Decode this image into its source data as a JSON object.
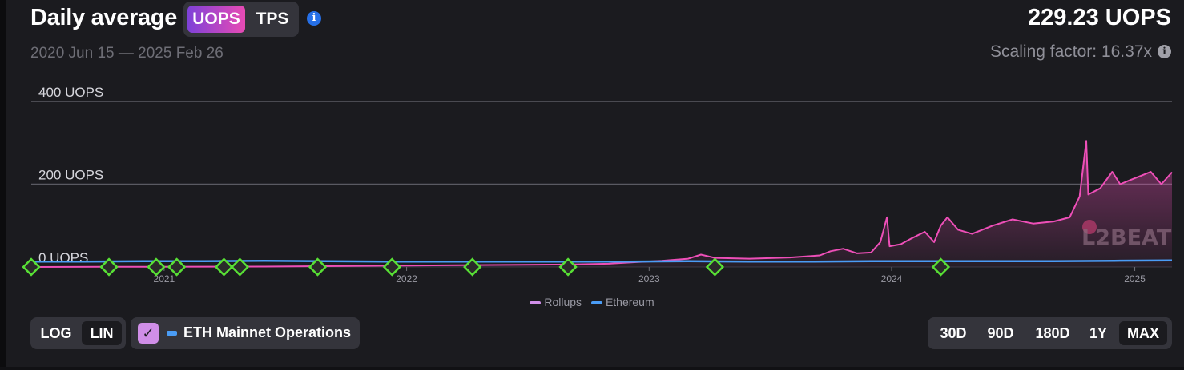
{
  "header": {
    "title": "Daily average",
    "metric_options": [
      "UOPS",
      "TPS"
    ],
    "metric_selected": "UOPS",
    "date_range": "2020 Jun 15 — 2025 Feb 26",
    "headline_value": "229.23 UOPS",
    "scaling_factor": "Scaling factor: 16.37x",
    "info_icon": "info-icon"
  },
  "chart_data": {
    "type": "line",
    "title": "Daily average",
    "ylabel": "",
    "xlabel": "",
    "ylim": [
      0,
      400
    ],
    "y_ticks": [
      "0 UOPS",
      "200 UOPS",
      "400 UOPS"
    ],
    "x_ticks": [
      "2021",
      "2022",
      "2023",
      "2024",
      "2025"
    ],
    "x_range": [
      "2020-06-15",
      "2025-02-26"
    ],
    "grid": true,
    "legend_position": "bottom-center",
    "watermark": "L2BEAT",
    "series": [
      {
        "name": "Rollups",
        "color": "#ee4fb8",
        "fill": true,
        "points": [
          [
            "2020-06-15",
            0
          ],
          [
            "2020-12-01",
            0.5
          ],
          [
            "2021-06-01",
            1
          ],
          [
            "2021-09-01",
            2
          ],
          [
            "2021-12-01",
            3
          ],
          [
            "2022-03-01",
            4
          ],
          [
            "2022-06-01",
            5
          ],
          [
            "2022-09-01",
            6
          ],
          [
            "2022-11-01",
            8
          ],
          [
            "2022-12-15",
            12
          ],
          [
            "2023-01-20",
            15
          ],
          [
            "2023-03-01",
            20
          ],
          [
            "2023-03-20",
            30
          ],
          [
            "2023-04-10",
            22
          ],
          [
            "2023-06-01",
            20
          ],
          [
            "2023-08-01",
            23
          ],
          [
            "2023-09-15",
            28
          ],
          [
            "2023-10-01",
            38
          ],
          [
            "2023-10-20",
            44
          ],
          [
            "2023-11-10",
            33
          ],
          [
            "2023-12-01",
            35
          ],
          [
            "2023-12-15",
            60
          ],
          [
            "2023-12-25",
            120
          ],
          [
            "2023-12-29",
            50
          ],
          [
            "2024-01-15",
            55
          ],
          [
            "2024-02-01",
            70
          ],
          [
            "2024-02-20",
            85
          ],
          [
            "2024-03-05",
            60
          ],
          [
            "2024-03-15",
            100
          ],
          [
            "2024-03-25",
            120
          ],
          [
            "2024-04-10",
            90
          ],
          [
            "2024-05-01",
            80
          ],
          [
            "2024-06-01",
            100
          ],
          [
            "2024-07-01",
            115
          ],
          [
            "2024-08-01",
            105
          ],
          [
            "2024-09-01",
            110
          ],
          [
            "2024-09-25",
            120
          ],
          [
            "2024-10-10",
            170
          ],
          [
            "2024-10-20",
            305
          ],
          [
            "2024-10-23",
            175
          ],
          [
            "2024-11-10",
            190
          ],
          [
            "2024-11-28",
            230
          ],
          [
            "2024-12-10",
            200
          ],
          [
            "2024-12-25",
            210
          ],
          [
            "2025-01-10",
            220
          ],
          [
            "2025-01-25",
            230
          ],
          [
            "2025-02-10",
            200
          ],
          [
            "2025-02-26",
            229
          ]
        ]
      },
      {
        "name": "Ethereum",
        "color": "#4a9cf5",
        "fill": false,
        "points": [
          [
            "2020-06-15",
            13
          ],
          [
            "2020-09-01",
            13
          ],
          [
            "2020-12-01",
            14
          ],
          [
            "2021-03-01",
            14
          ],
          [
            "2021-06-01",
            15
          ],
          [
            "2021-09-01",
            14
          ],
          [
            "2021-12-01",
            13
          ],
          [
            "2022-03-01",
            13
          ],
          [
            "2022-06-01",
            13
          ],
          [
            "2022-09-01",
            13
          ],
          [
            "2022-12-01",
            13
          ],
          [
            "2023-03-01",
            14
          ],
          [
            "2023-06-01",
            13
          ],
          [
            "2023-09-01",
            13
          ],
          [
            "2023-12-01",
            14
          ],
          [
            "2024-03-01",
            14
          ],
          [
            "2024-06-01",
            14
          ],
          [
            "2024-09-01",
            14
          ],
          [
            "2024-12-01",
            15
          ],
          [
            "2025-02-26",
            16
          ]
        ]
      }
    ],
    "event_markers": [
      "2020-06-15",
      "2020-10-10",
      "2020-12-20",
      "2021-01-20",
      "2021-04-01",
      "2021-04-25",
      "2021-08-20",
      "2021-12-10",
      "2022-04-10",
      "2022-09-01",
      "2023-04-10",
      "2024-03-15"
    ]
  },
  "legend": [
    {
      "name": "Rollups",
      "color": "#ee4fb8"
    },
    {
      "name": "Ethereum",
      "color": "#4a9cf5"
    }
  ],
  "controls": {
    "scale_options": [
      "LOG",
      "LIN"
    ],
    "scale_selected": "LIN",
    "eth_mainnet_label": "ETH Mainnet Operations",
    "eth_mainnet_checked": true,
    "range_options": [
      "30D",
      "90D",
      "180D",
      "1Y",
      "MAX"
    ],
    "range_selected": "MAX"
  }
}
